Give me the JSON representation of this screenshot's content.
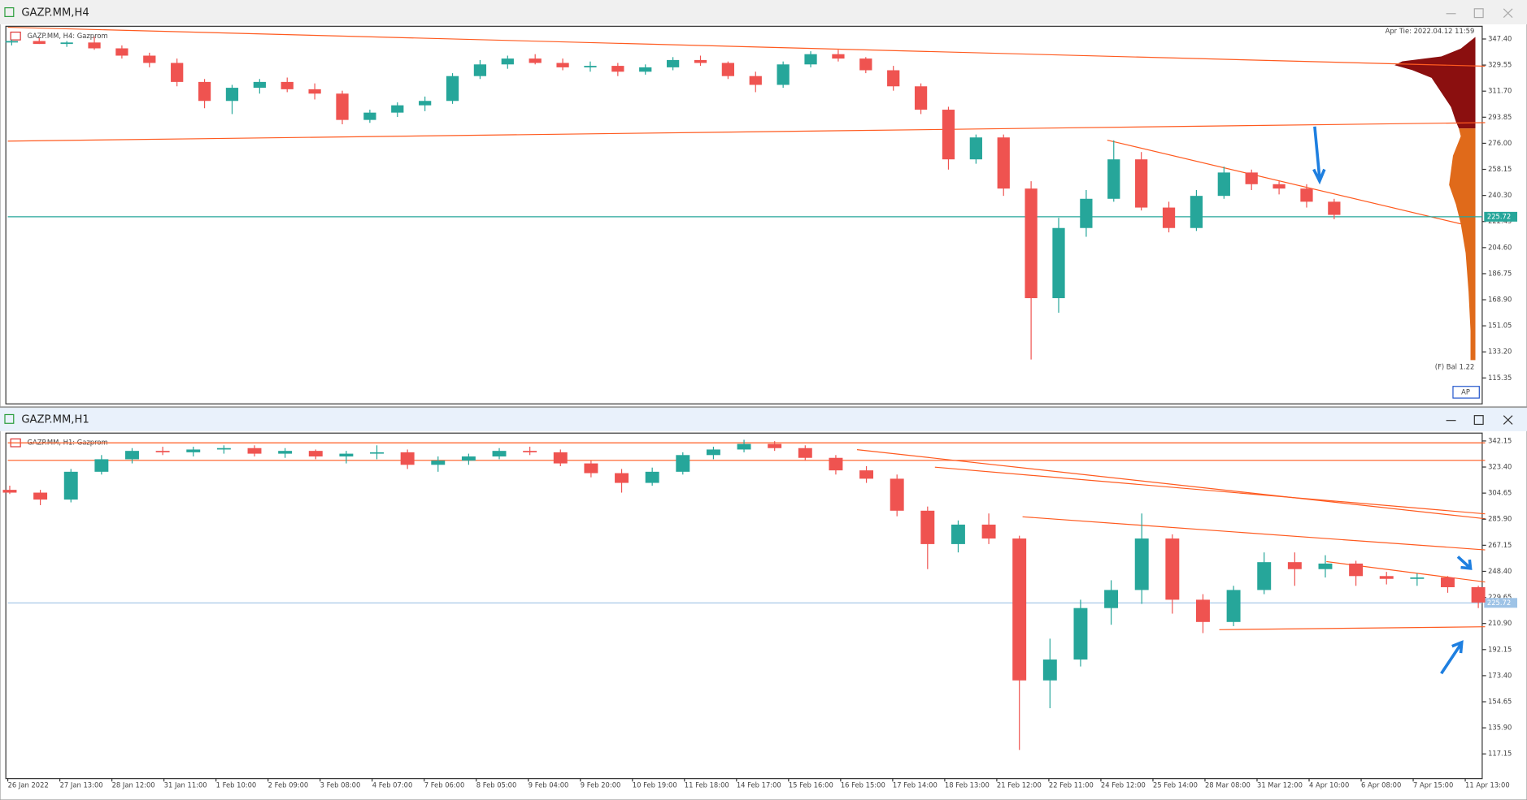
{
  "windows": [
    {
      "title": "GAZP.MM,H4",
      "label": "GAZP.MM, H4:  Gazprom",
      "info": "Apr Tie: 2022.04.12 11:59",
      "footer": "(F) Bal 1.22",
      "button": "AP",
      "last_price": {
        "value": 225.72,
        "label": "225.72"
      },
      "ylim": [
        97.6,
        356.1
      ],
      "yticks": [
        {
          "value": 347.4,
          "label": "347.40"
        },
        {
          "value": 329.55,
          "label": "329.55"
        },
        {
          "value": 311.7,
          "label": "311.70"
        },
        {
          "value": 293.85,
          "label": "293.85"
        },
        {
          "value": 276,
          "label": "276.00"
        },
        {
          "value": 258.15,
          "label": "258.15"
        },
        {
          "value": 240.3,
          "label": "240.30"
        },
        {
          "value": 222.45,
          "label": "222.45"
        },
        {
          "value": 204.6,
          "label": "204.60"
        },
        {
          "value": 186.75,
          "label": "186.75"
        },
        {
          "value": 168.9,
          "label": "168.90"
        },
        {
          "value": 151.05,
          "label": "151.05"
        },
        {
          "value": 133.2,
          "label": "133.20"
        },
        {
          "value": 115.35,
          "label": "115.35"
        }
      ],
      "candles": [
        [
          345,
          347,
          343,
          346
        ],
        [
          346,
          348,
          344,
          344
        ],
        [
          344,
          346,
          342,
          345
        ],
        [
          345,
          349,
          340,
          341
        ],
        [
          341,
          343,
          334,
          336
        ],
        [
          336,
          338,
          328,
          331
        ],
        [
          331,
          334,
          315,
          318
        ],
        [
          318,
          320,
          300,
          305
        ],
        [
          305,
          316,
          296,
          314
        ],
        [
          314,
          320,
          310,
          318
        ],
        [
          318,
          321,
          311,
          313
        ],
        [
          313,
          317,
          306,
          310
        ],
        [
          310,
          312,
          289,
          292
        ],
        [
          292,
          299,
          290,
          297
        ],
        [
          297,
          304,
          294,
          302
        ],
        [
          302,
          308,
          298,
          305
        ],
        [
          305,
          324,
          303,
          322
        ],
        [
          322,
          333,
          320,
          330
        ],
        [
          330,
          336,
          327,
          334
        ],
        [
          334,
          337,
          330,
          331
        ],
        [
          331,
          334,
          326,
          328
        ],
        [
          328,
          332,
          325,
          329
        ],
        [
          329,
          331,
          322,
          325
        ],
        [
          325,
          330,
          323,
          328
        ],
        [
          328,
          335,
          326,
          333
        ],
        [
          333,
          336,
          329,
          331
        ],
        [
          331,
          332,
          320,
          322
        ],
        [
          322,
          325,
          311,
          316
        ],
        [
          316,
          332,
          314,
          330
        ],
        [
          330,
          339,
          328,
          337
        ],
        [
          337,
          340,
          332,
          334
        ],
        [
          334,
          335,
          324,
          326
        ],
        [
          326,
          329,
          312,
          315
        ],
        [
          315,
          317,
          296,
          299
        ],
        [
          299,
          301,
          258,
          265
        ],
        [
          265,
          282,
          262,
          280
        ],
        [
          280,
          282,
          240,
          245
        ],
        [
          245,
          250,
          128,
          170
        ],
        [
          170,
          225,
          160,
          218
        ],
        [
          218,
          244,
          212,
          238
        ],
        [
          238,
          278,
          236,
          265
        ],
        [
          265,
          270,
          230,
          232
        ],
        [
          232,
          236,
          215,
          218
        ],
        [
          218,
          244,
          216,
          240
        ],
        [
          240,
          260,
          238,
          256
        ],
        [
          256,
          258,
          244,
          248
        ],
        [
          248,
          250,
          241,
          245
        ],
        [
          245,
          248,
          232,
          236
        ],
        [
          236,
          238,
          224,
          227
        ]
      ]
    },
    {
      "title": "GAZP.MM,H1",
      "label": "GAZP.MM, H1:  Gazprom",
      "last_price": {
        "value": 225.72,
        "label": "225.72"
      },
      "ylim": [
        99.4,
        347.8
      ],
      "yticks": [
        {
          "value": 342.15,
          "label": "342.15"
        },
        {
          "value": 323.4,
          "label": "323.40"
        },
        {
          "value": 304.65,
          "label": "304.65"
        },
        {
          "value": 285.9,
          "label": "285.90"
        },
        {
          "value": 267.15,
          "label": "267.15"
        },
        {
          "value": 248.4,
          "label": "248.40"
        },
        {
          "value": 229.65,
          "label": "229.65"
        },
        {
          "value": 210.9,
          "label": "210.90"
        },
        {
          "value": 192.15,
          "label": "192.15"
        },
        {
          "value": 173.4,
          "label": "173.40"
        },
        {
          "value": 154.65,
          "label": "154.65"
        },
        {
          "value": 135.9,
          "label": "135.90"
        },
        {
          "value": 117.15,
          "label": "117.15"
        }
      ],
      "xticks": [
        "26 Jan 2022",
        "27 Jan 13:00",
        "28 Jan 12:00",
        "31 Jan 11:00",
        "1 Feb 10:00",
        "2 Feb 09:00",
        "3 Feb 08:00",
        "4 Feb 07:00",
        "7 Feb 06:00",
        "8 Feb 05:00",
        "9 Feb 04:00",
        "9 Feb 20:00",
        "10 Feb 19:00",
        "11 Feb 18:00",
        "14 Feb 17:00",
        "15 Feb 16:00",
        "16 Feb 15:00",
        "17 Feb 14:00",
        "18 Feb 13:00",
        "21 Feb 12:00",
        "22 Feb 11:00",
        "24 Feb 12:00",
        "25 Feb 14:00",
        "28 Mar 08:00",
        "31 Mar 12:00",
        "4 Apr 10:00",
        "6 Apr 08:00",
        "7 Apr 15:00",
        "11 Apr 13:00"
      ],
      "candles": [
        [
          307,
          310,
          304,
          305
        ],
        [
          305,
          307,
          296,
          300
        ],
        [
          300,
          322,
          298,
          320
        ],
        [
          320,
          332,
          318,
          329
        ],
        [
          329,
          337,
          326,
          335
        ],
        [
          335,
          338,
          332,
          334
        ],
        [
          334,
          338,
          331,
          336
        ],
        [
          336,
          339,
          333,
          337
        ],
        [
          337,
          339,
          331,
          333
        ],
        [
          333,
          337,
          330,
          335
        ],
        [
          335,
          336,
          329,
          331
        ],
        [
          331,
          335,
          326,
          333
        ],
        [
          333,
          339,
          329,
          334
        ],
        [
          334,
          336,
          322,
          325
        ],
        [
          325,
          331,
          320,
          328
        ],
        [
          328,
          333,
          325,
          331
        ],
        [
          331,
          337,
          329,
          335
        ],
        [
          335,
          338,
          332,
          334
        ],
        [
          334,
          336,
          324,
          326
        ],
        [
          326,
          328,
          316,
          319
        ],
        [
          319,
          322,
          305,
          312
        ],
        [
          312,
          323,
          310,
          320
        ],
        [
          320,
          334,
          318,
          332
        ],
        [
          332,
          338,
          329,
          336
        ],
        [
          336,
          343,
          334,
          340
        ],
        [
          340,
          342,
          335,
          337
        ],
        [
          337,
          339,
          328,
          330
        ],
        [
          330,
          332,
          318,
          321
        ],
        [
          321,
          324,
          312,
          315
        ],
        [
          315,
          318,
          288,
          292
        ],
        [
          292,
          295,
          250,
          268
        ],
        [
          268,
          285,
          262,
          282
        ],
        [
          282,
          290,
          268,
          272
        ],
        [
          272,
          274,
          120,
          170
        ],
        [
          170,
          200,
          150,
          185
        ],
        [
          185,
          228,
          180,
          222
        ],
        [
          222,
          242,
          210,
          235
        ],
        [
          235,
          290,
          225,
          272
        ],
        [
          272,
          275,
          218,
          228
        ],
        [
          228,
          232,
          204,
          212
        ],
        [
          212,
          238,
          209,
          235
        ],
        [
          235,
          262,
          232,
          255
        ],
        [
          255,
          262,
          238,
          250
        ],
        [
          250,
          260,
          244,
          254
        ],
        [
          254,
          256,
          238,
          245
        ],
        [
          245,
          248,
          239,
          243
        ],
        [
          243,
          247,
          238,
          244
        ],
        [
          244,
          245,
          233,
          237
        ],
        [
          237,
          238,
          222,
          226
        ]
      ]
    }
  ]
}
